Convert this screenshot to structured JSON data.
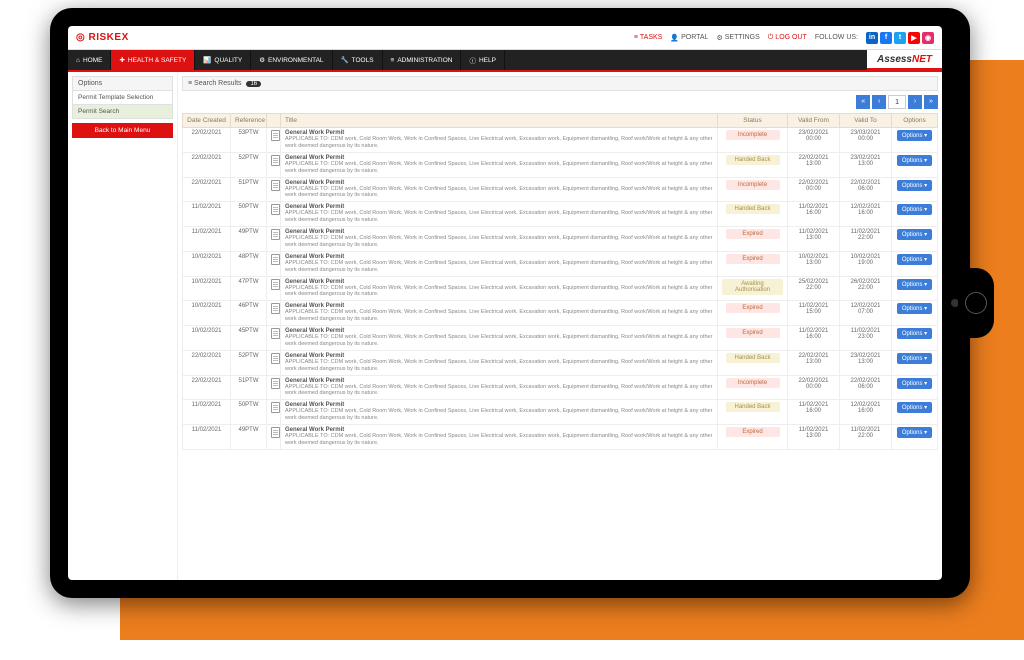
{
  "brand": "RISKEX",
  "assess": {
    "a": "Assess",
    "b": "NET"
  },
  "top": {
    "tasks": "TASKS",
    "portal": "PORTAL",
    "settings": "SETTINGS",
    "logout": "LOG OUT",
    "follow": "FOLLOW US:"
  },
  "social_colors": {
    "in": "#0a66c2",
    "fb": "#1877f2",
    "tw": "#1da1f2",
    "yt": "#ff0000",
    "ig": "#e1306c"
  },
  "social_glyphs": {
    "in": "in",
    "fb": "f",
    "tw": "t",
    "yt": "▶",
    "ig": "◉"
  },
  "menu": {
    "home": "HOME",
    "hs": "HEALTH & SAFETY",
    "quality": "QUALITY",
    "env": "ENVIRONMENTAL",
    "tools": "TOOLS",
    "admin": "ADMINISTRATION",
    "help": "HELP"
  },
  "sidebar": {
    "head": "Options",
    "tpl": "Permit Template Selection",
    "search": "Permit Search",
    "back": "Back to Main Menu"
  },
  "search": {
    "label": "Search Results",
    "count": "16"
  },
  "pager": {
    "first": "«",
    "prev": "‹",
    "page": "1",
    "next": "›",
    "last": "»"
  },
  "cols": {
    "date": "Date Created",
    "ref": "Reference",
    "title": "Title",
    "status": "Status",
    "vfrom": "Valid From",
    "vto": "Valid To",
    "opts": "Options"
  },
  "row_title": "General Work Permit",
  "row_sub": "APPLICABLE TO: CDM work, Cold Room Work, Work in Confined Spaces, Live Electrical work, Excavation work, Equipment dismantling, Roof work/Work at height &amp; any other work deemed dangerous by its nature.",
  "opt_label": "Options",
  "status_styles": {
    "Incomplete": {
      "bg": "#fde6e3",
      "fg": "#c0693e"
    },
    "Handed Back": {
      "bg": "#f7f1d6",
      "fg": "#a89247"
    },
    "Expired": {
      "bg": "#fde6e3",
      "fg": "#c0693e"
    },
    "Awaiting Authorisation": {
      "bg": "#f7f1d6",
      "fg": "#a89247"
    }
  },
  "rows": [
    {
      "date": "22/02/2021",
      "ref": "53PTW",
      "status": "Incomplete",
      "vf_d": "23/02/2021",
      "vf_t": "00:00",
      "vt_d": "23/03/2021",
      "vt_t": "00:00"
    },
    {
      "date": "22/02/2021",
      "ref": "52PTW",
      "status": "Handed Back",
      "vf_d": "22/02/2021",
      "vf_t": "13:00",
      "vt_d": "23/02/2021",
      "vt_t": "13:00"
    },
    {
      "date": "22/02/2021",
      "ref": "51PTW",
      "status": "Incomplete",
      "vf_d": "22/02/2021",
      "vf_t": "00:00",
      "vt_d": "22/02/2021",
      "vt_t": "06:00"
    },
    {
      "date": "11/02/2021",
      "ref": "50PTW",
      "status": "Handed Back",
      "vf_d": "11/02/2021",
      "vf_t": "16:00",
      "vt_d": "12/02/2021",
      "vt_t": "16:00"
    },
    {
      "date": "11/02/2021",
      "ref": "49PTW",
      "status": "Expired",
      "vf_d": "11/02/2021",
      "vf_t": "13:00",
      "vt_d": "11/02/2021",
      "vt_t": "22:00"
    },
    {
      "date": "10/02/2021",
      "ref": "48PTW",
      "status": "Expired",
      "vf_d": "10/02/2021",
      "vf_t": "13:00",
      "vt_d": "10/02/2021",
      "vt_t": "19:00"
    },
    {
      "date": "10/02/2021",
      "ref": "47PTW",
      "status": "Awaiting Authorisation",
      "vf_d": "25/02/2021",
      "vf_t": "22:00",
      "vt_d": "26/02/2021",
      "vt_t": "22:00"
    },
    {
      "date": "10/02/2021",
      "ref": "46PTW",
      "status": "Expired",
      "vf_d": "11/02/2021",
      "vf_t": "15:00",
      "vt_d": "12/02/2021",
      "vt_t": "07:00"
    },
    {
      "date": "10/02/2021",
      "ref": "45PTW",
      "status": "Expired",
      "vf_d": "11/02/2021",
      "vf_t": "16:00",
      "vt_d": "11/02/2021",
      "vt_t": "23:00"
    },
    {
      "date": "22/02/2021",
      "ref": "52PTW",
      "status": "Handed Back",
      "vf_d": "22/02/2021",
      "vf_t": "13:00",
      "vt_d": "23/02/2021",
      "vt_t": "13:00"
    },
    {
      "date": "22/02/2021",
      "ref": "51PTW",
      "status": "Incomplete",
      "vf_d": "22/02/2021",
      "vf_t": "00:00",
      "vt_d": "22/02/2021",
      "vt_t": "06:00"
    },
    {
      "date": "11/02/2021",
      "ref": "50PTW",
      "status": "Handed Back",
      "vf_d": "11/02/2021",
      "vf_t": "16:00",
      "vt_d": "12/02/2021",
      "vt_t": "16:00"
    },
    {
      "date": "11/02/2021",
      "ref": "49PTW",
      "status": "Expired",
      "vf_d": "11/02/2021",
      "vf_t": "13:00",
      "vt_d": "11/02/2021",
      "vt_t": "22:00"
    }
  ]
}
